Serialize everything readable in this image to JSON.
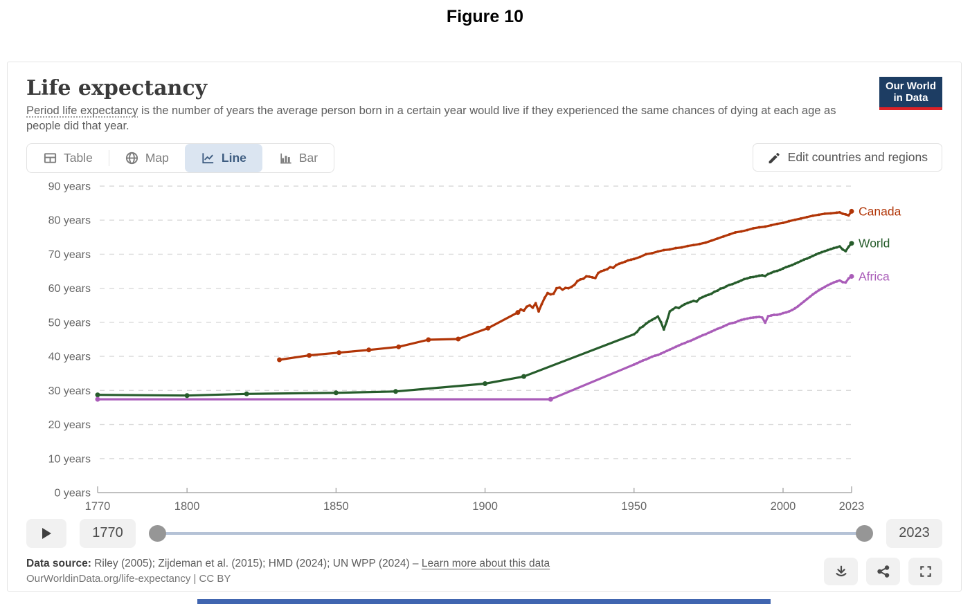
{
  "figure_label": "Figure 10",
  "header": {
    "title": "Life expectancy",
    "subtitle_link": "Period life expectancy",
    "subtitle_rest": " is the number of years the average person born in a certain year would live if they experienced the same chances of dying at each age as people did that year.",
    "logo_line1": "Our World",
    "logo_line2": "in Data",
    "logo_bg": "#1d3d63",
    "logo_accent": "#dc2227"
  },
  "tabs": [
    {
      "label": "Table",
      "icon": "table-icon",
      "active": false
    },
    {
      "label": "Map",
      "icon": "globe-icon",
      "active": false
    },
    {
      "label": "Line",
      "icon": "line-chart-icon",
      "active": true
    },
    {
      "label": "Bar",
      "icon": "bar-chart-icon",
      "active": false
    }
  ],
  "edit_button": {
    "label": "Edit countries and regions",
    "icon": "pencil-icon"
  },
  "timeline": {
    "start_year": "1770",
    "end_year": "2023"
  },
  "footer": {
    "source_label": "Data source:",
    "sources": " Riley (2005); Zijdeman et al. (2015); HMD (2024); UN WPP (2024) – ",
    "link_label": "Learn more about this data",
    "citation": "OurWorldinData.org/life-expectancy | CC BY",
    "buttons": [
      "download-icon",
      "share-icon",
      "fullscreen-icon"
    ]
  },
  "chart_data": {
    "type": "line",
    "title": "Life expectancy",
    "xlabel": "",
    "ylabel": "years",
    "xlim": [
      1770,
      2023
    ],
    "ylim": [
      0,
      90
    ],
    "x_ticks": [
      1770,
      1800,
      1850,
      1900,
      1950,
      2000,
      2023
    ],
    "y_ticks": [
      0,
      10,
      20,
      30,
      40,
      50,
      60,
      70,
      80,
      90
    ],
    "y_tick_suffix": " years",
    "grid": "horizontal-dashed",
    "legend_position": "right-end-labels",
    "series": [
      {
        "name": "Canada",
        "color": "#B13507",
        "marker_years": [
          1831,
          1841,
          1851,
          1861,
          1871,
          1881,
          1891,
          1901,
          1911,
          2023
        ],
        "points": [
          [
            1831,
            39.0
          ],
          [
            1841,
            40.3
          ],
          [
            1851,
            41.1
          ],
          [
            1861,
            41.9
          ],
          [
            1871,
            42.8
          ],
          [
            1881,
            44.9
          ],
          [
            1891,
            45.1
          ],
          [
            1901,
            48.3
          ],
          [
            1911,
            52.9
          ],
          [
            1912,
            53.8
          ],
          [
            1913,
            53.4
          ],
          [
            1914,
            54.6
          ],
          [
            1915,
            55.0
          ],
          [
            1916,
            54.3
          ],
          [
            1917,
            55.6
          ],
          [
            1918,
            53.2
          ],
          [
            1919,
            55.3
          ],
          [
            1920,
            57.2
          ],
          [
            1921,
            58.6
          ],
          [
            1922,
            58.2
          ],
          [
            1923,
            58.4
          ],
          [
            1924,
            60.0
          ],
          [
            1925,
            60.2
          ],
          [
            1926,
            59.6
          ],
          [
            1927,
            60.1
          ],
          [
            1928,
            60.0
          ],
          [
            1929,
            60.4
          ],
          [
            1930,
            61.0
          ],
          [
            1931,
            62.1
          ],
          [
            1932,
            62.6
          ],
          [
            1933,
            62.8
          ],
          [
            1934,
            63.5
          ],
          [
            1935,
            63.4
          ],
          [
            1936,
            63.2
          ],
          [
            1937,
            63.0
          ],
          [
            1938,
            64.5
          ],
          [
            1939,
            65.0
          ],
          [
            1940,
            65.3
          ],
          [
            1941,
            65.6
          ],
          [
            1942,
            66.2
          ],
          [
            1943,
            66.0
          ],
          [
            1944,
            66.8
          ],
          [
            1945,
            67.2
          ],
          [
            1946,
            67.5
          ],
          [
            1947,
            67.8
          ],
          [
            1948,
            68.2
          ],
          [
            1949,
            68.4
          ],
          [
            1950,
            68.6
          ],
          [
            1952,
            69.2
          ],
          [
            1954,
            70.0
          ],
          [
            1956,
            70.3
          ],
          [
            1958,
            70.8
          ],
          [
            1960,
            71.2
          ],
          [
            1962,
            71.4
          ],
          [
            1964,
            71.8
          ],
          [
            1966,
            72.0
          ],
          [
            1968,
            72.4
          ],
          [
            1970,
            72.7
          ],
          [
            1972,
            73.0
          ],
          [
            1974,
            73.4
          ],
          [
            1976,
            74.0
          ],
          [
            1978,
            74.6
          ],
          [
            1980,
            75.2
          ],
          [
            1982,
            75.8
          ],
          [
            1984,
            76.4
          ],
          [
            1986,
            76.7
          ],
          [
            1988,
            77.1
          ],
          [
            1990,
            77.6
          ],
          [
            1992,
            77.9
          ],
          [
            1994,
            78.1
          ],
          [
            1996,
            78.5
          ],
          [
            1998,
            78.9
          ],
          [
            2000,
            79.2
          ],
          [
            2002,
            79.7
          ],
          [
            2004,
            80.1
          ],
          [
            2006,
            80.5
          ],
          [
            2008,
            80.9
          ],
          [
            2010,
            81.3
          ],
          [
            2012,
            81.6
          ],
          [
            2014,
            81.9
          ],
          [
            2016,
            82.0
          ],
          [
            2018,
            82.2
          ],
          [
            2019,
            82.3
          ],
          [
            2020,
            81.9
          ],
          [
            2021,
            81.7
          ],
          [
            2022,
            81.4
          ],
          [
            2023,
            82.6
          ]
        ]
      },
      {
        "name": "World",
        "color": "#265C2B",
        "marker_years": [
          1770,
          1800,
          1820,
          1850,
          1870,
          1900,
          1913,
          2023
        ],
        "points": [
          [
            1770,
            28.7
          ],
          [
            1800,
            28.5
          ],
          [
            1820,
            29.0
          ],
          [
            1850,
            29.3
          ],
          [
            1870,
            29.7
          ],
          [
            1900,
            32.0
          ],
          [
            1913,
            34.1
          ],
          [
            1950,
            46.5
          ],
          [
            1951,
            47.2
          ],
          [
            1952,
            48.3
          ],
          [
            1953,
            48.8
          ],
          [
            1954,
            49.6
          ],
          [
            1955,
            50.2
          ],
          [
            1956,
            50.7
          ],
          [
            1957,
            51.2
          ],
          [
            1958,
            51.7
          ],
          [
            1959,
            50.1
          ],
          [
            1960,
            47.9
          ],
          [
            1961,
            50.3
          ],
          [
            1962,
            53.2
          ],
          [
            1963,
            53.8
          ],
          [
            1964,
            54.4
          ],
          [
            1965,
            54.2
          ],
          [
            1966,
            54.8
          ],
          [
            1967,
            55.3
          ],
          [
            1968,
            55.7
          ],
          [
            1969,
            56.0
          ],
          [
            1970,
            56.3
          ],
          [
            1971,
            56.1
          ],
          [
            1972,
            57.0
          ],
          [
            1973,
            57.4
          ],
          [
            1974,
            57.8
          ],
          [
            1975,
            58.1
          ],
          [
            1976,
            58.4
          ],
          [
            1977,
            59.0
          ],
          [
            1978,
            59.3
          ],
          [
            1979,
            59.9
          ],
          [
            1980,
            60.1
          ],
          [
            1981,
            60.6
          ],
          [
            1982,
            61.0
          ],
          [
            1983,
            61.2
          ],
          [
            1984,
            61.6
          ],
          [
            1985,
            61.9
          ],
          [
            1986,
            62.3
          ],
          [
            1987,
            62.7
          ],
          [
            1988,
            62.9
          ],
          [
            1989,
            63.2
          ],
          [
            1990,
            63.3
          ],
          [
            1991,
            63.5
          ],
          [
            1992,
            63.7
          ],
          [
            1993,
            63.8
          ],
          [
            1994,
            63.6
          ],
          [
            1995,
            64.2
          ],
          [
            1996,
            64.5
          ],
          [
            1997,
            64.9
          ],
          [
            1998,
            65.1
          ],
          [
            1999,
            65.4
          ],
          [
            2000,
            65.8
          ],
          [
            2001,
            66.2
          ],
          [
            2002,
            66.5
          ],
          [
            2003,
            66.8
          ],
          [
            2004,
            67.2
          ],
          [
            2005,
            67.6
          ],
          [
            2006,
            68.0
          ],
          [
            2007,
            68.4
          ],
          [
            2008,
            68.7
          ],
          [
            2009,
            69.1
          ],
          [
            2010,
            69.5
          ],
          [
            2011,
            69.9
          ],
          [
            2012,
            70.3
          ],
          [
            2013,
            70.6
          ],
          [
            2014,
            70.9
          ],
          [
            2015,
            71.2
          ],
          [
            2016,
            71.5
          ],
          [
            2017,
            71.8
          ],
          [
            2018,
            72.0
          ],
          [
            2019,
            72.3
          ],
          [
            2020,
            71.4
          ],
          [
            2021,
            70.9
          ],
          [
            2022,
            72.2
          ],
          [
            2023,
            73.2
          ]
        ]
      },
      {
        "name": "Africa",
        "color": "#A95CB8",
        "marker_years": [
          1770,
          1922,
          2023
        ],
        "points": [
          [
            1770,
            27.4
          ],
          [
            1922,
            27.4
          ],
          [
            1950,
            37.6
          ],
          [
            1951,
            38.0
          ],
          [
            1952,
            38.4
          ],
          [
            1953,
            38.8
          ],
          [
            1954,
            39.1
          ],
          [
            1955,
            39.5
          ],
          [
            1956,
            39.9
          ],
          [
            1957,
            40.2
          ],
          [
            1958,
            40.4
          ],
          [
            1959,
            40.8
          ],
          [
            1960,
            41.2
          ],
          [
            1961,
            41.6
          ],
          [
            1962,
            42.0
          ],
          [
            1963,
            42.4
          ],
          [
            1964,
            42.8
          ],
          [
            1965,
            43.2
          ],
          [
            1966,
            43.6
          ],
          [
            1967,
            43.9
          ],
          [
            1968,
            44.3
          ],
          [
            1969,
            44.6
          ],
          [
            1970,
            45.0
          ],
          [
            1971,
            45.4
          ],
          [
            1972,
            45.8
          ],
          [
            1973,
            46.2
          ],
          [
            1974,
            46.5
          ],
          [
            1975,
            46.9
          ],
          [
            1976,
            47.3
          ],
          [
            1977,
            47.7
          ],
          [
            1978,
            48.1
          ],
          [
            1979,
            48.4
          ],
          [
            1980,
            48.8
          ],
          [
            1981,
            49.2
          ],
          [
            1982,
            49.6
          ],
          [
            1983,
            49.8
          ],
          [
            1984,
            50.0
          ],
          [
            1985,
            50.4
          ],
          [
            1986,
            50.7
          ],
          [
            1987,
            50.9
          ],
          [
            1988,
            51.1
          ],
          [
            1989,
            51.3
          ],
          [
            1990,
            51.4
          ],
          [
            1991,
            51.5
          ],
          [
            1992,
            51.6
          ],
          [
            1993,
            51.4
          ],
          [
            1994,
            49.9
          ],
          [
            1995,
            51.8
          ],
          [
            1996,
            52.0
          ],
          [
            1997,
            52.2
          ],
          [
            1998,
            52.2
          ],
          [
            1999,
            52.4
          ],
          [
            2000,
            52.7
          ],
          [
            2001,
            52.9
          ],
          [
            2002,
            53.2
          ],
          [
            2003,
            53.6
          ],
          [
            2004,
            54.1
          ],
          [
            2005,
            54.7
          ],
          [
            2006,
            55.4
          ],
          [
            2007,
            56.1
          ],
          [
            2008,
            56.8
          ],
          [
            2009,
            57.5
          ],
          [
            2010,
            58.2
          ],
          [
            2011,
            58.8
          ],
          [
            2012,
            59.4
          ],
          [
            2013,
            59.9
          ],
          [
            2014,
            60.4
          ],
          [
            2015,
            60.9
          ],
          [
            2016,
            61.3
          ],
          [
            2017,
            61.7
          ],
          [
            2018,
            62.0
          ],
          [
            2019,
            62.3
          ],
          [
            2020,
            61.8
          ],
          [
            2021,
            61.7
          ],
          [
            2022,
            62.9
          ],
          [
            2023,
            63.5
          ]
        ]
      }
    ]
  }
}
